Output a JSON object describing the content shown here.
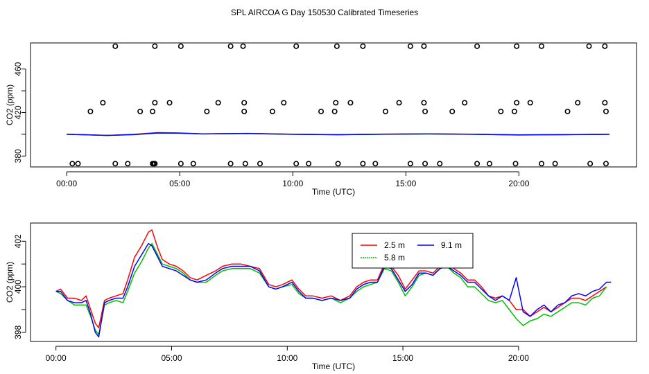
{
  "title": "SPL AIRCOA G  Day 150530  Calibrated Timeseries",
  "chart_data": [
    {
      "type": "scatter+line",
      "xlabel": "Time (UTC)",
      "ylabel": "CO2 (ppm)",
      "xlim": [
        -1.6,
        25.2
      ],
      "ylim": [
        370,
        484
      ],
      "xticks": [
        0,
        5,
        10,
        15,
        20
      ],
      "xtick_labels": [
        "00:00",
        "05:00",
        "10:00",
        "15:00",
        "20:00"
      ],
      "yticks": [
        380,
        420,
        460
      ],
      "ytick_labels": [
        "380",
        "420",
        "460"
      ],
      "calibration_points": {
        "style": "open circle",
        "x": [
          0.5,
          2.15,
          2.7,
          3.8,
          3.85,
          3.9,
          5.05,
          5.6,
          7.25,
          7.9,
          8.55,
          10.15,
          10.7,
          12.0,
          13.1,
          13.65,
          15.2,
          15.85,
          16.5,
          18.15,
          18.7,
          19.85,
          21.0,
          21.6,
          23.15,
          23.85,
          0.25,
          1.05,
          3.25,
          3.8,
          6.2,
          7.85,
          9.1,
          11.25,
          11.85,
          14.1,
          15.85,
          17.05,
          19.2,
          19.8,
          22.15,
          23.85,
          1.6,
          3.9,
          4.55,
          6.7,
          7.85,
          9.6,
          11.9,
          12.55,
          14.7,
          15.8,
          17.6,
          19.9,
          20.5,
          22.6,
          23.8,
          2.15,
          3.9,
          5.05,
          7.25,
          7.8,
          10.15,
          11.95,
          13.1,
          15.2,
          15.8,
          18.15,
          19.9,
          21.0,
          23.1,
          23.8
        ],
        "y": [
          373,
          373,
          373,
          373,
          373,
          373,
          373,
          373,
          373,
          373,
          373,
          373,
          373,
          373,
          373,
          373,
          373,
          373,
          373,
          373,
          373,
          373,
          373,
          373,
          373,
          373,
          373,
          421,
          421,
          421,
          421,
          421,
          421,
          421,
          421,
          421,
          421,
          421,
          421,
          421,
          421,
          421,
          429,
          429,
          429,
          429,
          429,
          429,
          429,
          429,
          429,
          429,
          429,
          429,
          429,
          429,
          429,
          481,
          481,
          481,
          481,
          481,
          481,
          481,
          481,
          481,
          481,
          481,
          481,
          481,
          481,
          481
        ]
      },
      "series": [
        {
          "name": "2.5 m",
          "color": "#ff0000",
          "x": [
            0,
            1,
            1.8,
            3,
            4,
            5,
            6,
            8,
            10,
            12,
            14,
            16,
            18,
            20,
            22,
            24
          ],
          "y": [
            400,
            399.5,
            399,
            400,
            401.5,
            401.2,
            400.4,
            400.8,
            400.1,
            399.7,
            400.2,
            400.4,
            400.1,
            399.5,
            399.7,
            400
          ]
        },
        {
          "name": "5.8 m",
          "color": "#00c000",
          "x": [
            0,
            1,
            1.8,
            3,
            4,
            5,
            6,
            8,
            10,
            12,
            14,
            16,
            18,
            20,
            22,
            24
          ],
          "y": [
            400,
            399.4,
            398.9,
            399.7,
            401,
            401,
            400.3,
            400.7,
            400,
            399.6,
            400,
            400.3,
            400,
            399.3,
            399.6,
            400
          ]
        },
        {
          "name": "9.1 m",
          "color": "#0000ff",
          "x": [
            0,
            1,
            1.8,
            3,
            4,
            5,
            6,
            8,
            10,
            12,
            14,
            16,
            18,
            20,
            22,
            24
          ],
          "y": [
            400,
            399.4,
            399,
            399.8,
            401.2,
            401,
            400.3,
            400.7,
            400,
            399.6,
            400.1,
            400.3,
            400,
            399.5,
            399.7,
            400
          ]
        }
      ]
    },
    {
      "type": "line",
      "xlabel": "Time (UTC)",
      "ylabel": "CO2 (ppm)",
      "xlim": [
        -1.1,
        25.1
      ],
      "ylim": [
        397.6,
        402.8
      ],
      "xticks": [
        0,
        5,
        10,
        15,
        20
      ],
      "xtick_labels": [
        "00:00",
        "05:00",
        "10:00",
        "15:00",
        "20:00"
      ],
      "yticks": [
        398,
        400,
        402
      ],
      "ytick_labels": [
        "398",
        "400",
        "402"
      ],
      "legend": {
        "placement": "top-right"
      },
      "series": [
        {
          "name": "2.5 m",
          "color": "#ff0000",
          "x": [
            0,
            0.2,
            0.5,
            0.8,
            1.1,
            1.3,
            1.5,
            1.7,
            1.85,
            2.1,
            2.3,
            2.6,
            2.9,
            3.1,
            3.4,
            3.7,
            4.0,
            4.15,
            4.4,
            4.6,
            4.9,
            5.2,
            5.5,
            5.8,
            6.1,
            6.5,
            6.9,
            7.2,
            7.6,
            8.0,
            8.4,
            8.8,
            9.2,
            9.5,
            9.8,
            10.2,
            10.5,
            10.8,
            11.1,
            11.5,
            11.9,
            12.3,
            12.7,
            13.0,
            13.3,
            13.6,
            13.9,
            14.2,
            14.5,
            14.8,
            15.1,
            15.4,
            15.7,
            16.0,
            16.3,
            16.6,
            16.9,
            17.2,
            17.5,
            17.8,
            18.1,
            18.4,
            18.7,
            19.0,
            19.3,
            19.6,
            19.9,
            20.2,
            20.5,
            20.8,
            21.1,
            21.4,
            21.7,
            22.0,
            22.3,
            22.6,
            22.9,
            23.2,
            23.5,
            23.8
          ],
          "y": [
            399.8,
            399.9,
            399.5,
            399.5,
            399.4,
            399.6,
            399.0,
            398.4,
            398.2,
            399.4,
            399.5,
            399.6,
            399.7,
            400.3,
            401.3,
            401.8,
            402.4,
            402.5,
            401.7,
            401.2,
            401.0,
            400.9,
            400.7,
            400.4,
            400.3,
            400.5,
            400.7,
            400.9,
            401.0,
            401.0,
            400.9,
            400.8,
            400.1,
            400.0,
            400.1,
            400.3,
            399.9,
            399.6,
            399.6,
            399.5,
            399.6,
            399.4,
            399.6,
            400.0,
            400.2,
            400.3,
            400.3,
            401.0,
            400.9,
            400.5,
            399.9,
            400.3,
            400.7,
            400.7,
            400.6,
            400.9,
            401.0,
            400.8,
            400.6,
            400.3,
            400.3,
            400.0,
            399.6,
            399.5,
            399.6,
            399.4,
            399.0,
            399.0,
            398.7,
            398.9,
            399.1,
            398.9,
            399.1,
            399.3,
            399.5,
            399.5,
            399.4,
            399.6,
            399.8,
            400.0
          ]
        },
        {
          "name": "5.8 m",
          "color": "#00c000",
          "x": [
            0,
            0.2,
            0.5,
            0.8,
            1.1,
            1.3,
            1.5,
            1.7,
            1.85,
            2.1,
            2.3,
            2.6,
            2.9,
            3.1,
            3.4,
            3.7,
            4.0,
            4.15,
            4.4,
            4.6,
            4.9,
            5.2,
            5.5,
            5.8,
            6.1,
            6.5,
            6.9,
            7.2,
            7.6,
            8.0,
            8.4,
            8.8,
            9.2,
            9.5,
            9.8,
            10.2,
            10.5,
            10.8,
            11.1,
            11.5,
            11.9,
            12.3,
            12.7,
            13.0,
            13.3,
            13.6,
            13.9,
            14.2,
            14.5,
            14.8,
            15.1,
            15.4,
            15.7,
            16.0,
            16.3,
            16.6,
            16.9,
            17.2,
            17.5,
            17.8,
            18.1,
            18.4,
            18.7,
            19.0,
            19.3,
            19.6,
            19.9,
            20.2,
            20.5,
            20.8,
            21.1,
            21.4,
            21.7,
            22.0,
            22.3,
            22.6,
            22.9,
            23.2,
            23.5,
            23.8
          ],
          "y": [
            399.8,
            399.7,
            399.4,
            399.2,
            399.2,
            399.2,
            398.7,
            398.1,
            397.9,
            399.2,
            399.3,
            399.4,
            399.3,
            399.8,
            400.6,
            401.1,
            401.7,
            401.9,
            401.4,
            401.0,
            400.9,
            400.8,
            400.6,
            400.3,
            400.2,
            400.2,
            400.5,
            400.7,
            400.8,
            400.8,
            400.8,
            400.6,
            400.0,
            399.9,
            400.0,
            400.1,
            399.7,
            399.5,
            399.5,
            399.4,
            399.5,
            399.3,
            399.5,
            399.8,
            400.0,
            400.1,
            400.2,
            400.8,
            400.7,
            400.2,
            399.6,
            400.0,
            400.5,
            400.6,
            400.5,
            400.8,
            400.9,
            400.6,
            400.4,
            400.0,
            400.0,
            399.7,
            399.4,
            399.3,
            399.4,
            399.0,
            398.6,
            398.3,
            398.5,
            398.6,
            398.8,
            398.7,
            398.9,
            399.1,
            399.3,
            399.3,
            399.2,
            399.5,
            399.6,
            400.0
          ]
        },
        {
          "name": "9.1 m",
          "color": "#0000ff",
          "x": [
            0,
            0.2,
            0.5,
            0.8,
            1.1,
            1.3,
            1.5,
            1.7,
            1.85,
            2.1,
            2.3,
            2.6,
            2.9,
            3.1,
            3.4,
            3.7,
            4.0,
            4.15,
            4.4,
            4.6,
            4.9,
            5.2,
            5.5,
            5.8,
            6.1,
            6.5,
            6.9,
            7.2,
            7.6,
            8.0,
            8.4,
            8.8,
            9.2,
            9.5,
            9.8,
            10.2,
            10.5,
            10.8,
            11.1,
            11.5,
            11.9,
            12.3,
            12.7,
            13.0,
            13.3,
            13.6,
            13.9,
            14.2,
            14.5,
            14.8,
            15.1,
            15.4,
            15.7,
            16.0,
            16.3,
            16.6,
            16.9,
            17.2,
            17.5,
            17.8,
            18.1,
            18.4,
            18.7,
            19.0,
            19.3,
            19.6,
            19.9,
            20.2,
            20.5,
            20.8,
            21.1,
            21.4,
            21.7,
            22.0,
            22.3,
            22.6,
            22.9,
            23.2,
            23.5,
            23.8,
            24.0
          ],
          "y": [
            399.8,
            399.8,
            399.4,
            399.3,
            399.3,
            399.4,
            398.8,
            398.0,
            397.8,
            399.3,
            399.4,
            399.5,
            399.5,
            400.0,
            400.9,
            401.4,
            401.9,
            401.8,
            401.3,
            400.9,
            400.8,
            400.7,
            400.5,
            400.3,
            400.2,
            400.3,
            400.6,
            400.8,
            400.9,
            400.9,
            400.9,
            400.7,
            400.0,
            399.9,
            400.0,
            400.2,
            399.8,
            399.5,
            399.5,
            399.4,
            399.5,
            399.4,
            399.5,
            399.9,
            400.1,
            400.2,
            400.2,
            400.9,
            400.8,
            400.3,
            399.8,
            400.1,
            400.6,
            400.6,
            400.5,
            400.8,
            400.9,
            400.7,
            400.5,
            400.2,
            400.2,
            399.9,
            399.6,
            399.4,
            399.6,
            399.4,
            400.4,
            398.9,
            398.7,
            399.0,
            399.2,
            398.9,
            399.2,
            399.3,
            399.6,
            399.7,
            399.6,
            399.8,
            399.9,
            400.2,
            400.2
          ]
        }
      ]
    }
  ]
}
